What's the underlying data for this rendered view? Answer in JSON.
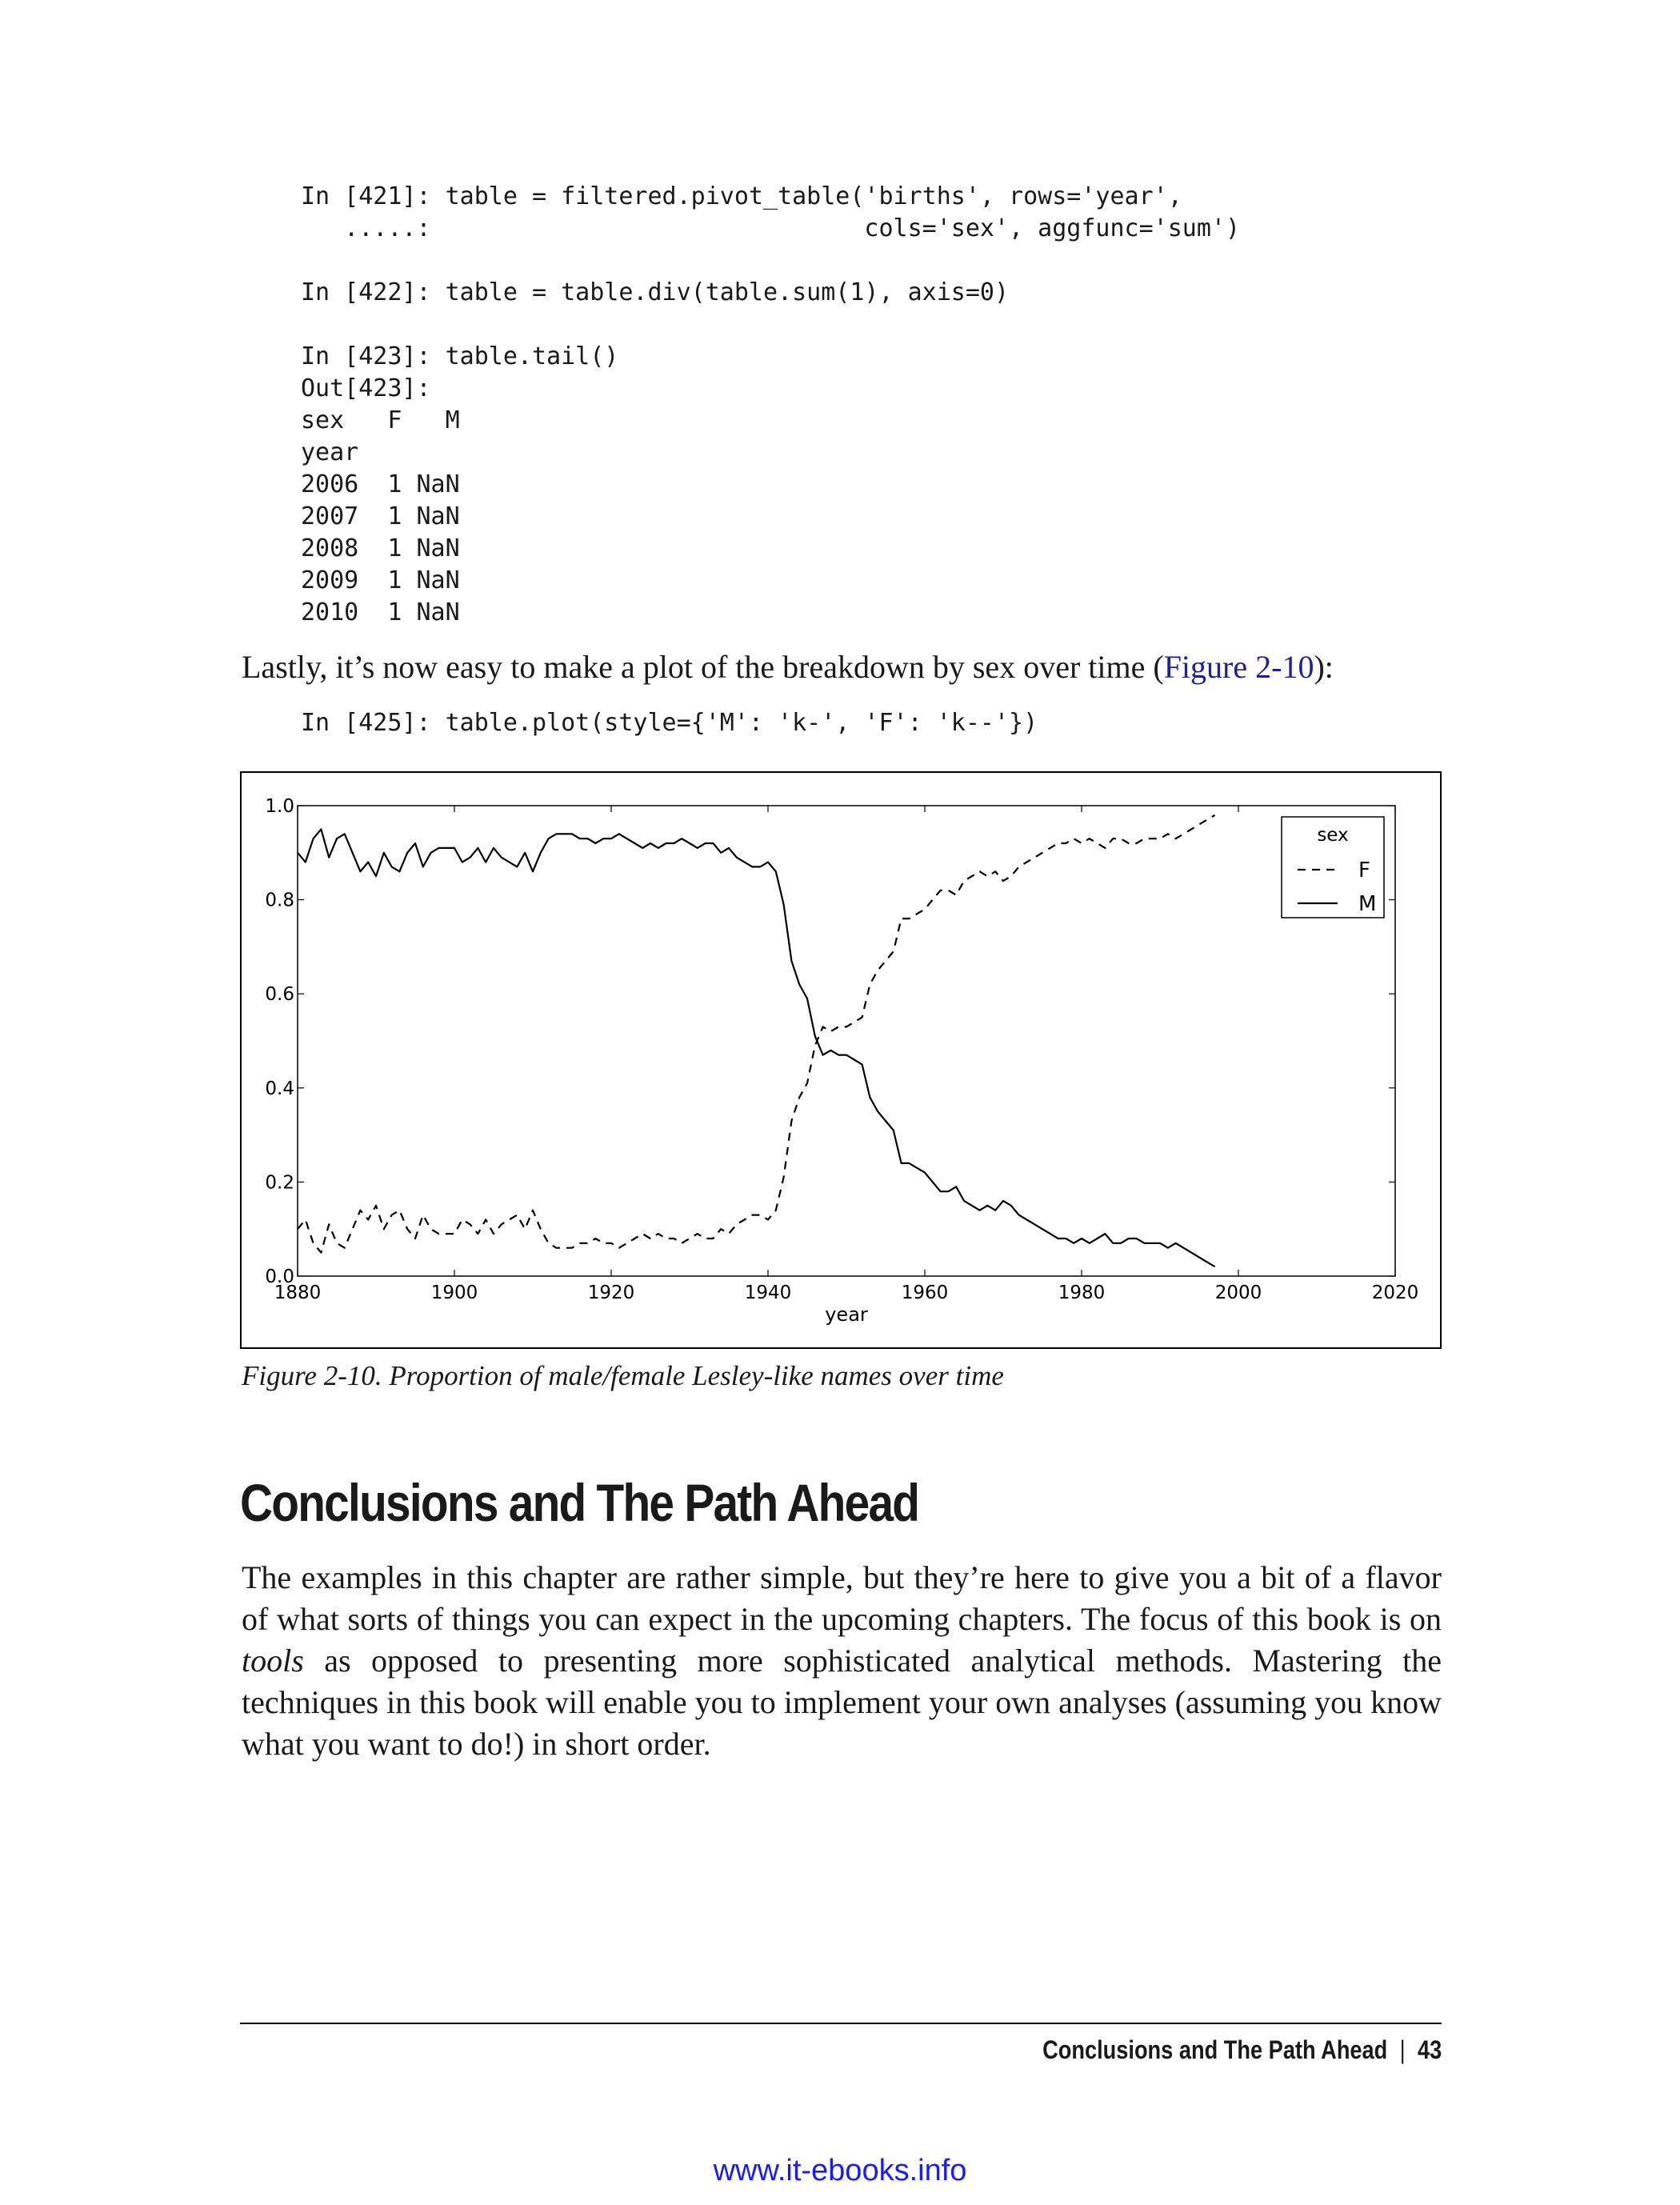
{
  "code_blocks": [
    "In [421]: table = filtered.pivot_table('births', rows='year',\n   .....:                              cols='sex', aggfunc='sum')",
    "In [422]: table = table.div(table.sum(1), axis=0)",
    "In [423]: table.tail()\nOut[423]:\nsex   F   M\nyear\n2006  1 NaN\n2007  1 NaN\n2008  1 NaN\n2009  1 NaN\n2010  1 NaN",
    "In [425]: table.plot(style={'M': 'k-', 'F': 'k--'})"
  ],
  "intro_text": {
    "before": "Lastly, it’s now easy to make a plot of the breakdown by sex over time (",
    "link": "Figure 2-10",
    "after": "):"
  },
  "figure_caption": "Figure 2-10. Proportion of male/female Lesley-like names over time",
  "chart_data": {
    "type": "line",
    "xlabel": "year",
    "ylabel": "",
    "xlim": [
      1880,
      2020
    ],
    "ylim": [
      0.0,
      1.0
    ],
    "x_ticks": [
      "1880",
      "1900",
      "1920",
      "1940",
      "1960",
      "1980",
      "2000",
      "2020"
    ],
    "y_ticks": [
      "0.0",
      "0.2",
      "0.4",
      "0.6",
      "0.8",
      "1.0"
    ],
    "legend": {
      "title": "sex",
      "placement": "top-right"
    },
    "grid": false,
    "series": [
      {
        "name": "F",
        "style": "dashed",
        "color": "#000000",
        "x": [
          1880,
          1881,
          1882,
          1883,
          1884,
          1885,
          1886,
          1887,
          1888,
          1889,
          1890,
          1891,
          1892,
          1893,
          1894,
          1895,
          1896,
          1897,
          1898,
          1899,
          1900,
          1901,
          1902,
          1903,
          1904,
          1905,
          1906,
          1907,
          1908,
          1909,
          1910,
          1911,
          1912,
          1913,
          1914,
          1915,
          1916,
          1917,
          1918,
          1919,
          1920,
          1921,
          1922,
          1923,
          1924,
          1925,
          1926,
          1927,
          1928,
          1929,
          1930,
          1931,
          1932,
          1933,
          1934,
          1935,
          1936,
          1937,
          1938,
          1939,
          1940,
          1941,
          1942,
          1943,
          1944,
          1945,
          1946,
          1947,
          1948,
          1949,
          1950,
          1951,
          1952,
          1953,
          1954,
          1955,
          1956,
          1957,
          1958,
          1959,
          1960,
          1961,
          1962,
          1963,
          1964,
          1965,
          1966,
          1967,
          1968,
          1969,
          1970,
          1971,
          1972,
          1973,
          1974,
          1975,
          1976,
          1977,
          1978,
          1979,
          1980,
          1981,
          1982,
          1983,
          1984,
          1985,
          1986,
          1987,
          1988,
          1989,
          1990,
          1991,
          1992,
          1993,
          1994,
          1995,
          1996,
          1997
        ],
        "values": [
          0.1,
          0.12,
          0.07,
          0.05,
          0.11,
          0.07,
          0.06,
          0.1,
          0.14,
          0.12,
          0.15,
          0.1,
          0.13,
          0.14,
          0.1,
          0.08,
          0.13,
          0.1,
          0.09,
          0.09,
          0.09,
          0.12,
          0.11,
          0.09,
          0.12,
          0.09,
          0.11,
          0.12,
          0.13,
          0.1,
          0.14,
          0.1,
          0.07,
          0.06,
          0.06,
          0.06,
          0.07,
          0.07,
          0.08,
          0.07,
          0.07,
          0.06,
          0.07,
          0.08,
          0.09,
          0.08,
          0.09,
          0.08,
          0.08,
          0.07,
          0.08,
          0.09,
          0.08,
          0.08,
          0.1,
          0.09,
          0.11,
          0.12,
          0.13,
          0.13,
          0.12,
          0.14,
          0.21,
          0.33,
          0.38,
          0.41,
          0.49,
          0.53,
          0.52,
          0.53,
          0.53,
          0.54,
          0.55,
          0.62,
          0.65,
          0.67,
          0.69,
          0.76,
          0.76,
          0.77,
          0.78,
          0.8,
          0.82,
          0.82,
          0.81,
          0.84,
          0.85,
          0.86,
          0.85,
          0.86,
          0.84,
          0.85,
          0.87,
          0.88,
          0.89,
          0.9,
          0.91,
          0.92,
          0.92,
          0.93,
          0.92,
          0.93,
          0.92,
          0.91,
          0.93,
          0.93,
          0.92,
          0.92,
          0.93,
          0.93,
          0.93,
          0.94,
          0.93,
          0.94,
          0.95,
          0.96,
          0.97,
          0.98
        ]
      },
      {
        "name": "M",
        "style": "solid",
        "color": "#000000",
        "x": [
          1880,
          1881,
          1882,
          1883,
          1884,
          1885,
          1886,
          1887,
          1888,
          1889,
          1890,
          1891,
          1892,
          1893,
          1894,
          1895,
          1896,
          1897,
          1898,
          1899,
          1900,
          1901,
          1902,
          1903,
          1904,
          1905,
          1906,
          1907,
          1908,
          1909,
          1910,
          1911,
          1912,
          1913,
          1914,
          1915,
          1916,
          1917,
          1918,
          1919,
          1920,
          1921,
          1922,
          1923,
          1924,
          1925,
          1926,
          1927,
          1928,
          1929,
          1930,
          1931,
          1932,
          1933,
          1934,
          1935,
          1936,
          1937,
          1938,
          1939,
          1940,
          1941,
          1942,
          1943,
          1944,
          1945,
          1946,
          1947,
          1948,
          1949,
          1950,
          1951,
          1952,
          1953,
          1954,
          1955,
          1956,
          1957,
          1958,
          1959,
          1960,
          1961,
          1962,
          1963,
          1964,
          1965,
          1966,
          1967,
          1968,
          1969,
          1970,
          1971,
          1972,
          1973,
          1974,
          1975,
          1976,
          1977,
          1978,
          1979,
          1980,
          1981,
          1982,
          1983,
          1984,
          1985,
          1986,
          1987,
          1988,
          1989,
          1990,
          1991,
          1992,
          1993,
          1994,
          1995,
          1996,
          1997
        ],
        "values": [
          0.9,
          0.88,
          0.93,
          0.95,
          0.89,
          0.93,
          0.94,
          0.9,
          0.86,
          0.88,
          0.85,
          0.9,
          0.87,
          0.86,
          0.9,
          0.92,
          0.87,
          0.9,
          0.91,
          0.91,
          0.91,
          0.88,
          0.89,
          0.91,
          0.88,
          0.91,
          0.89,
          0.88,
          0.87,
          0.9,
          0.86,
          0.9,
          0.93,
          0.94,
          0.94,
          0.94,
          0.93,
          0.93,
          0.92,
          0.93,
          0.93,
          0.94,
          0.93,
          0.92,
          0.91,
          0.92,
          0.91,
          0.92,
          0.92,
          0.93,
          0.92,
          0.91,
          0.92,
          0.92,
          0.9,
          0.91,
          0.89,
          0.88,
          0.87,
          0.87,
          0.88,
          0.86,
          0.79,
          0.67,
          0.62,
          0.59,
          0.51,
          0.47,
          0.48,
          0.47,
          0.47,
          0.46,
          0.45,
          0.38,
          0.35,
          0.33,
          0.31,
          0.24,
          0.24,
          0.23,
          0.22,
          0.2,
          0.18,
          0.18,
          0.19,
          0.16,
          0.15,
          0.14,
          0.15,
          0.14,
          0.16,
          0.15,
          0.13,
          0.12,
          0.11,
          0.1,
          0.09,
          0.08,
          0.08,
          0.07,
          0.08,
          0.07,
          0.08,
          0.09,
          0.07,
          0.07,
          0.08,
          0.08,
          0.07,
          0.07,
          0.07,
          0.06,
          0.07,
          0.06,
          0.05,
          0.04,
          0.03,
          0.02
        ]
      }
    ]
  },
  "section": {
    "heading": "Conclusions and The Path Ahead",
    "body": {
      "before": "The examples in this chapter are rather simple, but they’re here to give you a bit of a flavor of what sorts of things you can expect in the upcoming chapters. The focus of this book is on ",
      "emphasis": "tools",
      "after": " as opposed to presenting more sophisticated analytical methods. Mastering the techniques in this book will enable you to implement your own analyses (assuming you know what you want to do!) in short order."
    }
  },
  "footer": {
    "running_title": "Conclusions and The Path Ahead",
    "separator": "|",
    "page_number": "43"
  },
  "watermark": "www.it-ebooks.info"
}
